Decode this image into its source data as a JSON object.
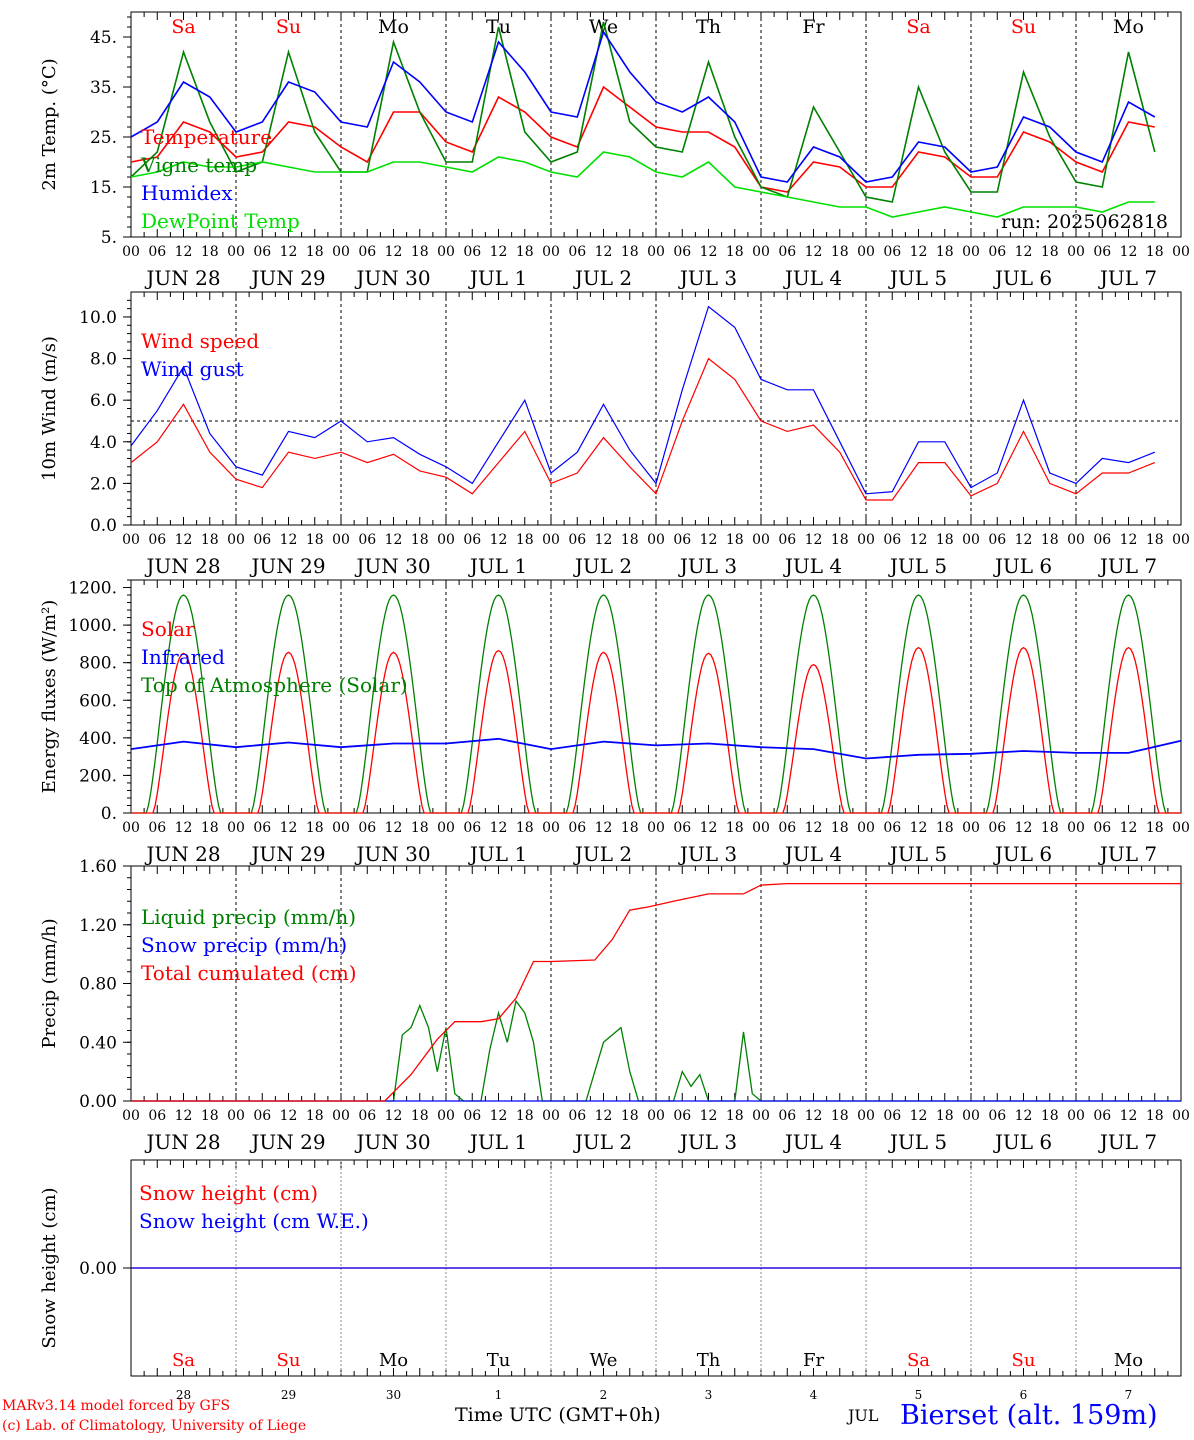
{
  "run_label": "run: 2025062818",
  "days": [
    "Sa",
    "Su",
    "Mo",
    "Tu",
    "We",
    "Th",
    "Fr",
    "Sa",
    "Su",
    "Mo"
  ],
  "weekend_days": [
    "Sa",
    "Su"
  ],
  "date_labels": [
    "JUN 28",
    "JUN 29",
    "JUN 30",
    "JUL  1",
    "JUL  2",
    "JUL  3",
    "JUL  4",
    "JUL  5",
    "JUL  6",
    "JUL  7"
  ],
  "hour_labels": [
    "00",
    "06",
    "12",
    "18"
  ],
  "bottom_day_numbers": [
    "28",
    "29",
    "30",
    "1",
    "2",
    "3",
    "4",
    "5",
    "6",
    "7"
  ],
  "bottom_month": "JUL",
  "time_axis_label": "Time UTC (GMT+0h)",
  "credit_line1": "MARv3.14 model forced by GFS",
  "credit_line2": "(c) Lab. of Climatology, University of Liege",
  "station": "Bierset (alt. 159m)",
  "colors": {
    "red": "#ff0000",
    "blue": "#0000ff",
    "green": "#008000",
    "light_green": "#00e000"
  },
  "chart_data": [
    {
      "type": "line",
      "ylabel": "2m Temp. (°C)",
      "ylim": [
        5,
        50
      ],
      "yticks": [
        "45.",
        "35.",
        "25.",
        "15.",
        "5."
      ],
      "x_unit": "hours since JUN 28 00 UTC",
      "series": [
        {
          "name": "Temperature",
          "color": "red",
          "x": [
            0,
            6,
            12,
            18,
            24,
            30,
            36,
            42,
            48,
            54,
            60,
            66,
            72,
            78,
            84,
            90,
            96,
            102,
            108,
            114,
            120,
            126,
            132,
            138,
            144,
            150,
            156,
            162,
            168,
            174,
            180,
            186,
            192,
            198,
            204,
            210,
            216,
            222,
            228,
            234
          ],
          "values": [
            20,
            21,
            28,
            26,
            21,
            22,
            28,
            27,
            23,
            20,
            30,
            30,
            24,
            22,
            33,
            30,
            25,
            23,
            35,
            31,
            27,
            26,
            26,
            23,
            15,
            14,
            20,
            19,
            15,
            15,
            22,
            21,
            17,
            17,
            26,
            24,
            20,
            18,
            28,
            27
          ]
        },
        {
          "name": "Vigne temp",
          "color": "green",
          "x": [
            0,
            6,
            12,
            18,
            24,
            30,
            36,
            42,
            48,
            54,
            60,
            66,
            72,
            78,
            84,
            90,
            96,
            102,
            108,
            114,
            120,
            126,
            132,
            138,
            144,
            150,
            156,
            162,
            168,
            174,
            180,
            186,
            192,
            198,
            204,
            210,
            216,
            222,
            228,
            234
          ],
          "values": [
            17,
            22,
            42,
            28,
            18,
            20,
            42,
            26,
            18,
            18,
            44,
            30,
            20,
            20,
            47,
            26,
            20,
            22,
            48,
            28,
            23,
            22,
            40,
            25,
            15,
            13,
            31,
            22,
            13,
            12,
            35,
            22,
            14,
            14,
            38,
            25,
            16,
            15,
            42,
            22
          ]
        },
        {
          "name": "Humidex",
          "color": "blue",
          "x": [
            0,
            6,
            12,
            18,
            24,
            30,
            36,
            42,
            48,
            54,
            60,
            66,
            72,
            78,
            84,
            90,
            96,
            102,
            108,
            114,
            120,
            126,
            132,
            138,
            144,
            150,
            156,
            162,
            168,
            174,
            180,
            186,
            192,
            198,
            204,
            210,
            216,
            222,
            228,
            234
          ],
          "values": [
            25,
            28,
            36,
            33,
            26,
            28,
            36,
            34,
            28,
            27,
            40,
            36,
            30,
            28,
            44,
            38,
            30,
            29,
            46,
            38,
            32,
            30,
            33,
            28,
            17,
            16,
            23,
            21,
            16,
            17,
            24,
            23,
            18,
            19,
            29,
            27,
            22,
            20,
            32,
            29
          ]
        },
        {
          "name": "DewPoint Temp",
          "color": "light_green",
          "x": [
            0,
            6,
            12,
            18,
            24,
            30,
            36,
            42,
            48,
            54,
            60,
            66,
            72,
            78,
            84,
            90,
            96,
            102,
            108,
            114,
            120,
            126,
            132,
            138,
            144,
            150,
            156,
            162,
            168,
            174,
            180,
            186,
            192,
            198,
            204,
            210,
            216,
            222,
            228,
            234
          ],
          "values": [
            17,
            18,
            20,
            19,
            19,
            20,
            19,
            18,
            18,
            18,
            20,
            20,
            19,
            18,
            21,
            20,
            18,
            17,
            22,
            21,
            18,
            17,
            20,
            15,
            14,
            13,
            12,
            11,
            11,
            9,
            10,
            11,
            10,
            9,
            11,
            11,
            11,
            10,
            12,
            12
          ]
        }
      ]
    },
    {
      "type": "line",
      "ylabel": "10m Wind (m/s)",
      "ylim": [
        0,
        11
      ],
      "yticks": [
        "10.0",
        "8.0",
        "6.0",
        "4.0",
        "2.0",
        "0.0"
      ],
      "reference_line": 5,
      "x_unit": "hours since JUN 28 00 UTC",
      "series": [
        {
          "name": "Wind speed",
          "color": "red",
          "x": [
            0,
            6,
            12,
            18,
            24,
            30,
            36,
            42,
            48,
            54,
            60,
            66,
            72,
            78,
            84,
            90,
            96,
            102,
            108,
            114,
            120,
            126,
            132,
            138,
            144,
            150,
            156,
            162,
            168,
            174,
            180,
            186,
            192,
            198,
            204,
            210,
            216,
            222,
            228,
            234
          ],
          "values": [
            3,
            4,
            5.8,
            3.5,
            2.2,
            1.8,
            3.5,
            3.2,
            3.5,
            3,
            3.4,
            2.6,
            2.3,
            1.5,
            3,
            4.5,
            2,
            2.5,
            4.2,
            2.8,
            1.5,
            5,
            8,
            7,
            5,
            4.5,
            4.8,
            3.5,
            1.2,
            1.2,
            3,
            3,
            1.4,
            2,
            4.5,
            2,
            1.5,
            2.5,
            2.5,
            3
          ]
        },
        {
          "name": "Wind gust",
          "color": "blue",
          "x": [
            0,
            6,
            12,
            18,
            24,
            30,
            36,
            42,
            48,
            54,
            60,
            66,
            72,
            78,
            84,
            90,
            96,
            102,
            108,
            114,
            120,
            126,
            132,
            138,
            144,
            150,
            156,
            162,
            168,
            174,
            180,
            186,
            192,
            198,
            204,
            210,
            216,
            222,
            228,
            234
          ],
          "values": [
            3.8,
            5.5,
            7.6,
            4.4,
            2.8,
            2.4,
            4.5,
            4.2,
            5,
            4,
            4.2,
            3.4,
            2.8,
            2,
            4,
            6,
            2.5,
            3.5,
            5.8,
            3.6,
            2,
            6.5,
            10.5,
            9.5,
            7,
            6.5,
            6.5,
            4,
            1.5,
            1.6,
            4,
            4,
            1.8,
            2.5,
            6,
            2.5,
            2,
            3.2,
            3,
            3.5
          ]
        }
      ]
    },
    {
      "type": "line",
      "ylabel": "Energy fluxes (W/m²)",
      "ylim": [
        0,
        1200
      ],
      "yticks": [
        "1200.",
        "1000.",
        "800.",
        "600.",
        "400.",
        "200.",
        "0."
      ],
      "x_unit": "hours since JUN 28 00 UTC",
      "series": [
        {
          "name": "Solar",
          "color": "red",
          "daily_peak_W_m2": [
            850,
            855,
            855,
            865,
            855,
            850,
            790,
            880,
            880,
            880
          ]
        },
        {
          "name": "Infrared",
          "color": "blue",
          "x": [
            0,
            12,
            24,
            36,
            48,
            60,
            72,
            84,
            96,
            108,
            120,
            132,
            144,
            156,
            168,
            180,
            192,
            204,
            216,
            228,
            240
          ],
          "values": [
            340,
            380,
            350,
            375,
            350,
            370,
            370,
            395,
            340,
            380,
            360,
            370,
            350,
            340,
            290,
            310,
            315,
            330,
            320,
            320,
            385
          ]
        },
        {
          "name": "Top of Atmosphere (Solar)",
          "color": "green",
          "daily_peak_W_m2": [
            1160,
            1160,
            1160,
            1160,
            1160,
            1160,
            1160,
            1160,
            1160,
            1160
          ]
        }
      ]
    },
    {
      "type": "line",
      "ylabel": "Precip (mm/h)",
      "ylim": [
        0,
        1.6
      ],
      "yticks": [
        "1.60",
        "1.20",
        "0.80",
        "0.40",
        "0.00"
      ],
      "x_unit": "hours since JUN 28 00 UTC",
      "series": [
        {
          "name": "Liquid precip (mm/h)",
          "color": "green",
          "x": [
            0,
            60,
            62,
            64,
            66,
            68,
            70,
            72,
            74,
            76,
            78,
            80,
            82,
            84,
            86,
            88,
            90,
            92,
            94,
            96,
            104,
            108,
            112,
            114,
            116,
            118,
            124,
            126,
            128,
            130,
            132,
            138,
            140,
            142,
            144,
            240
          ],
          "values": [
            0,
            0,
            0.45,
            0.5,
            0.65,
            0.5,
            0.2,
            0.5,
            0.05,
            0,
            0,
            0,
            0.35,
            0.6,
            0.4,
            0.68,
            0.6,
            0.4,
            0,
            0,
            0,
            0.4,
            0.5,
            0.2,
            0,
            0,
            0,
            0.2,
            0.1,
            0.18,
            0,
            0,
            0.47,
            0.05,
            0,
            0
          ]
        },
        {
          "name": "Snow precip (mm/h)",
          "color": "blue",
          "x": [
            0,
            240
          ],
          "values": [
            0,
            0
          ]
        },
        {
          "name": "Total cumulated (cm)",
          "color": "red",
          "x": [
            0,
            58,
            64,
            70,
            74,
            80,
            84,
            88,
            92,
            96,
            106,
            110,
            114,
            118,
            124,
            132,
            140,
            144,
            150,
            240
          ],
          "values": [
            0,
            0,
            0.18,
            0.42,
            0.54,
            0.54,
            0.56,
            0.7,
            0.95,
            0.95,
            0.96,
            1.1,
            1.3,
            1.32,
            1.36,
            1.41,
            1.41,
            1.47,
            1.48,
            1.48
          ]
        }
      ]
    },
    {
      "type": "line",
      "ylabel": "Snow height (cm)",
      "yticks": [
        "0.00"
      ],
      "x_unit": "hours since JUN 28 00 UTC",
      "series": [
        {
          "name": "Snow height (cm)",
          "color": "red",
          "x": [
            0,
            240
          ],
          "values": [
            0,
            0
          ]
        },
        {
          "name": "Snow height (cm W.E.)",
          "color": "blue",
          "x": [
            0,
            240
          ],
          "values": [
            0,
            0
          ]
        }
      ]
    }
  ]
}
